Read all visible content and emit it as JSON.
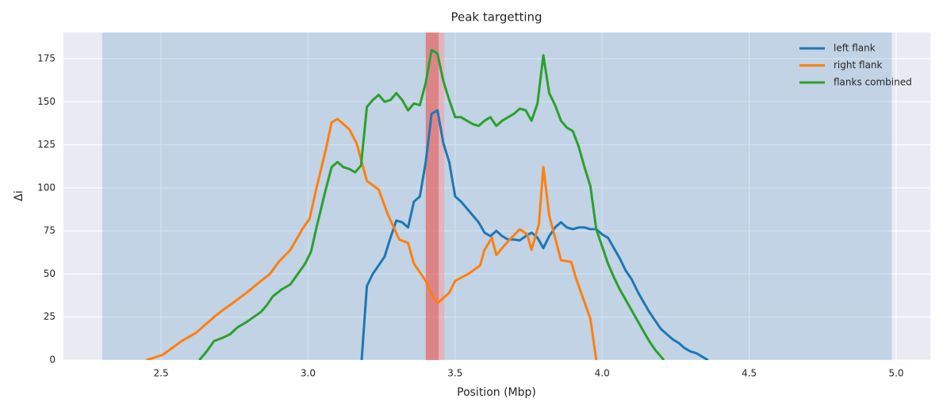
{
  "chart_data": {
    "type": "line",
    "title": "Peak targetting",
    "xlabel": "Position (Mbp)",
    "ylabel": "Δi",
    "xlim": [
      2.168,
      5.116
    ],
    "ylim": [
      0,
      190.2
    ],
    "xticks": [
      2.5,
      {
        "value": 3,
        "label": "3.0"
      },
      3.5,
      {
        "value": 4,
        "label": "4.0"
      },
      4.5,
      {
        "value": 5,
        "label": "5.0"
      }
    ],
    "yticks": [
      0,
      25,
      50,
      75,
      100,
      125,
      150,
      175
    ],
    "grid": true,
    "legend": "upper right",
    "spans": [
      {
        "x": [
          2.3,
          4.985
        ],
        "color": "#1f77b4",
        "alpha": 0.2
      },
      {
        "x": [
          3.4,
          3.463
        ],
        "color": "#ff9896",
        "alpha": 0.5
      },
      {
        "x": [
          3.4,
          3.444
        ],
        "color": "#d62728",
        "alpha": 0.35
      }
    ],
    "series": [
      {
        "name": "left flank",
        "color": "#1f77b4",
        "x": [
          3.182,
          3.2,
          3.22,
          3.26,
          3.28,
          3.3,
          3.32,
          3.34,
          3.36,
          3.38,
          3.4,
          3.42,
          3.44,
          3.46,
          3.48,
          3.5,
          3.52,
          3.54,
          3.56,
          3.58,
          3.6,
          3.62,
          3.64,
          3.66,
          3.68,
          3.7,
          3.72,
          3.74,
          3.76,
          3.78,
          3.8,
          3.82,
          3.84,
          3.86,
          3.88,
          3.9,
          3.92,
          3.94,
          3.96,
          3.98,
          4.0,
          4.02,
          4.04,
          4.06,
          4.08,
          4.1,
          4.12,
          4.14,
          4.16,
          4.18,
          4.2,
          4.22,
          4.24,
          4.26,
          4.28,
          4.3,
          4.32,
          4.34,
          4.36
        ],
        "values": [
          0,
          43,
          50,
          60,
          71,
          81,
          80,
          77,
          92,
          95,
          115,
          143,
          145,
          126,
          115,
          95,
          92,
          88,
          84,
          80,
          74,
          72,
          75,
          72,
          70,
          70,
          69.5,
          72,
          74,
          71,
          65,
          72,
          77,
          80,
          77,
          76,
          77,
          77,
          76,
          76,
          73,
          71,
          65,
          59,
          52,
          47,
          40,
          34,
          28,
          23,
          18,
          15,
          12,
          10,
          7,
          5,
          4,
          2,
          0
        ]
      },
      {
        "name": "right flank",
        "color": "#ff7f0e",
        "x": [
          2.45,
          2.505,
          2.57,
          2.62,
          2.68,
          2.71,
          2.735,
          2.79,
          2.84,
          2.87,
          2.9,
          2.94,
          2.98,
          3.005,
          3.03,
          3.06,
          3.08,
          3.1,
          3.14,
          3.165,
          3.2,
          3.24,
          3.27,
          3.31,
          3.34,
          3.36,
          3.4,
          3.42,
          3.44,
          3.46,
          3.48,
          3.5,
          3.545,
          3.585,
          3.6,
          3.625,
          3.64,
          3.68,
          3.72,
          3.745,
          3.76,
          3.785,
          3.8,
          3.82,
          3.84,
          3.86,
          3.895,
          3.91,
          3.935,
          3.96,
          3.98
        ],
        "values": [
          0,
          3,
          11,
          16,
          25,
          29,
          32,
          39,
          46,
          50,
          57,
          64,
          76,
          82,
          101,
          122,
          138,
          140,
          134,
          126,
          104,
          99,
          85,
          70,
          68,
          56,
          46,
          38,
          33,
          36,
          39,
          46,
          50,
          55,
          64,
          71,
          61,
          69,
          76,
          73,
          64,
          79,
          112,
          84,
          71,
          58,
          57,
          48,
          36,
          24,
          0
        ]
      },
      {
        "name": "flanks combined",
        "color": "#2ca02c",
        "x": [
          2.63,
          2.655,
          2.68,
          2.71,
          2.735,
          2.76,
          2.79,
          2.815,
          2.84,
          2.86,
          2.88,
          2.91,
          2.94,
          2.965,
          2.99,
          3.01,
          3.03,
          3.06,
          3.08,
          3.1,
          3.12,
          3.14,
          3.16,
          3.18,
          3.2,
          3.22,
          3.24,
          3.26,
          3.28,
          3.3,
          3.32,
          3.34,
          3.36,
          3.38,
          3.4,
          3.42,
          3.44,
          3.46,
          3.48,
          3.5,
          3.52,
          3.54,
          3.56,
          3.58,
          3.6,
          3.62,
          3.64,
          3.66,
          3.68,
          3.7,
          3.72,
          3.74,
          3.76,
          3.78,
          3.8,
          3.82,
          3.84,
          3.86,
          3.88,
          3.9,
          3.92,
          3.94,
          3.96,
          3.98,
          4.0,
          4.02,
          4.04,
          4.06,
          4.08,
          4.1,
          4.12,
          4.14,
          4.16,
          4.18,
          4.2,
          4.21
        ],
        "values": [
          0,
          5,
          11,
          13,
          15,
          19,
          22,
          25,
          28,
          32,
          37,
          41,
          44,
          50,
          56,
          63,
          78,
          99,
          112,
          115,
          112,
          111,
          109,
          113,
          147,
          151,
          154,
          150,
          151,
          155,
          151,
          145,
          149,
          148,
          161,
          180,
          178,
          162,
          151,
          141,
          141,
          139,
          137,
          136,
          139,
          141,
          136,
          139,
          141,
          143,
          146,
          145,
          139,
          149,
          177,
          155,
          148,
          139,
          135,
          133,
          124,
          112,
          101,
          76,
          66,
          56,
          48,
          41,
          35,
          29,
          23,
          17,
          11,
          6,
          2,
          0
        ]
      }
    ]
  }
}
